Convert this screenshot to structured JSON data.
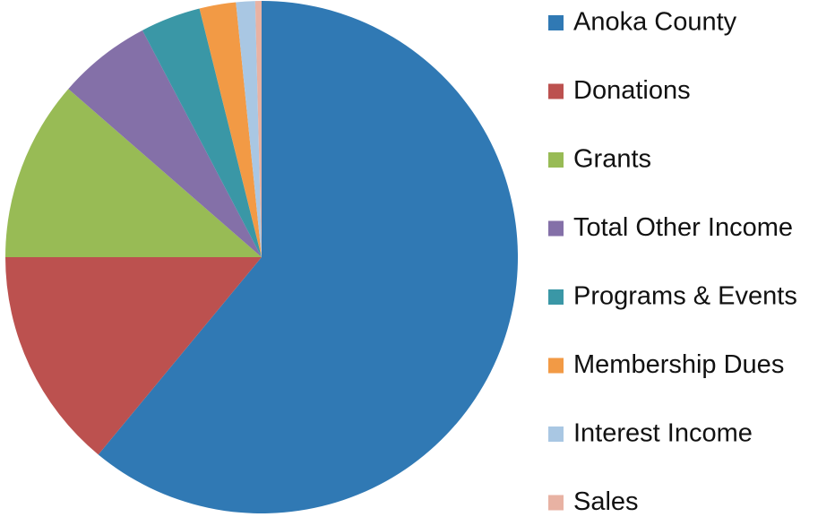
{
  "chart_data": {
    "type": "pie",
    "categories": [
      "Anoka County",
      "Donations",
      "Grants",
      "Total Other Income",
      "Programs & Events",
      "Membership Dues",
      "Interest Income",
      "Sales"
    ],
    "values": [
      61,
      14,
      11.4,
      5.9,
      3.8,
      2.3,
      1.2,
      0.4
    ],
    "colors": [
      "#3079b4",
      "#bc514f",
      "#98bb55",
      "#8470a8",
      "#3a97a6",
      "#f29a45",
      "#a9c7e3",
      "#e8b2a3"
    ],
    "legend": "right"
  }
}
